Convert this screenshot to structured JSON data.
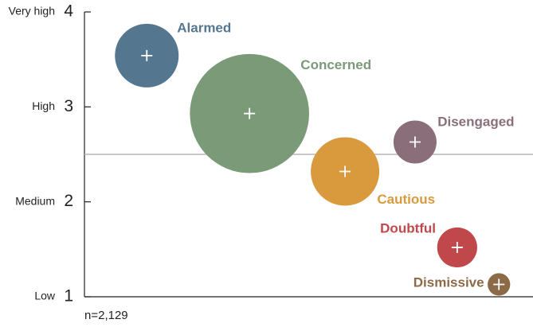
{
  "chart_data": {
    "type": "bubble",
    "ylim": [
      1,
      4
    ],
    "yticks": [
      1,
      2,
      3,
      4
    ],
    "ytick_names": [
      "Low",
      "Medium",
      "High",
      "Very high"
    ],
    "xlim": [
      0,
      100
    ],
    "reference_line": 2.5,
    "note": "n=2,129",
    "series": [
      {
        "name": "Alarmed",
        "color": "#55768f",
        "x": 13.9,
        "y": 3.54,
        "size": 16
      },
      {
        "name": "Concerned",
        "color": "#7a9a78",
        "x": 36.8,
        "y": 2.93,
        "size": 56
      },
      {
        "name": "Cautious",
        "color": "#d99a3e",
        "x": 58.1,
        "y": 2.32,
        "size": 18.5
      },
      {
        "name": "Disengaged",
        "color": "#8a6e7a",
        "x": 73.7,
        "y": 2.63,
        "size": 7.3
      },
      {
        "name": "Doubtful",
        "color": "#c0474a",
        "x": 83.1,
        "y": 1.52,
        "size": 6.3
      },
      {
        "name": "Dismissive",
        "color": "#8d6a47",
        "x": 92.4,
        "y": 1.13,
        "size": 2
      }
    ]
  }
}
